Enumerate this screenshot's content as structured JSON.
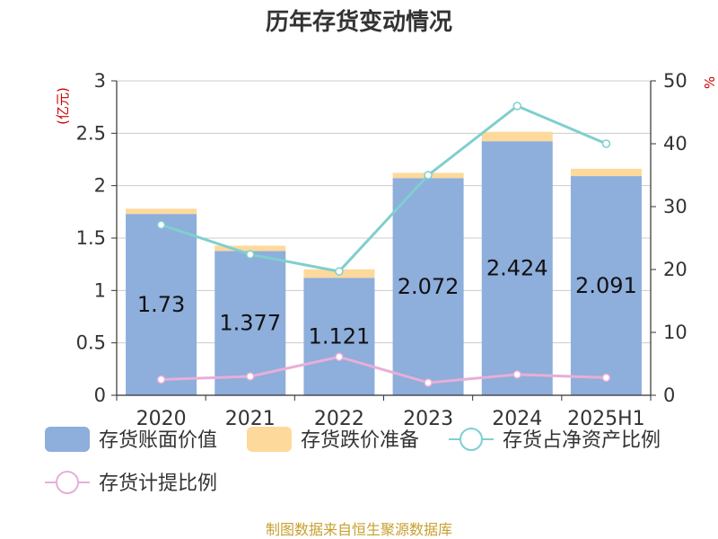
{
  "chart_data": {
    "type": "bar",
    "title": "历年存货变动情况",
    "left_unit": "(亿元)",
    "right_unit": "%",
    "categories": [
      "2020",
      "2021",
      "2022",
      "2023",
      "2024",
      "2025H1"
    ],
    "y_left": {
      "ylim": [
        0,
        3
      ],
      "ticks": [
        "0",
        "0.5",
        "1",
        "1.5",
        "2",
        "2.5",
        "3"
      ]
    },
    "y_right": {
      "ylim": [
        0,
        50
      ],
      "ticks": [
        "0",
        "10",
        "20",
        "30",
        "40",
        "50"
      ]
    },
    "series": [
      {
        "name": "存货账面价值",
        "kind": "bar",
        "axis": "left",
        "color": "#8eaedb",
        "values": [
          1.73,
          1.377,
          1.121,
          2.072,
          2.424,
          2.091
        ],
        "labels": [
          "1.73",
          "1.377",
          "1.121",
          "2.072",
          "2.424",
          "2.091"
        ]
      },
      {
        "name": "存货跌价准备",
        "kind": "bar-stacked",
        "axis": "left",
        "color": "#fdd99b",
        "values": [
          0.05,
          0.05,
          0.08,
          0.05,
          0.09,
          0.07
        ]
      },
      {
        "name": "存货占净资产比例",
        "kind": "line",
        "axis": "right",
        "color": "#7fcfcf",
        "values": [
          27.1,
          22.4,
          19.7,
          35.0,
          46.0,
          40.0
        ]
      },
      {
        "name": "存货计提比例",
        "kind": "line",
        "axis": "right",
        "color": "#e8aed8",
        "values": [
          2.5,
          3.0,
          6.1,
          2.0,
          3.3,
          2.8
        ]
      }
    ],
    "grid": true,
    "legend_position": "bottom"
  },
  "source": "制图数据来自恒生聚源数据库"
}
